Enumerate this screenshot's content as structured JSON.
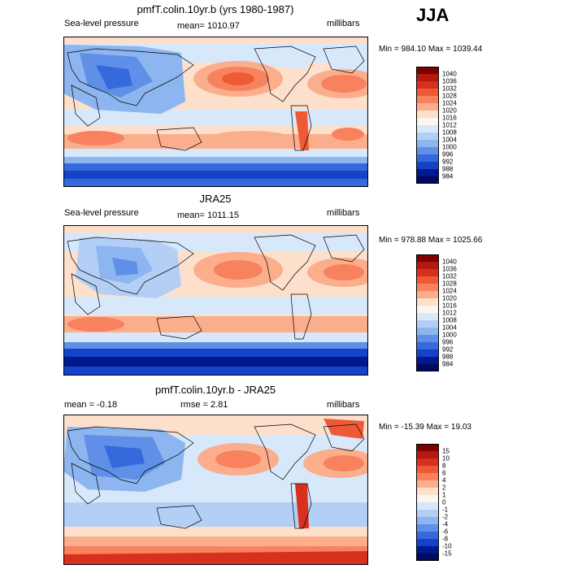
{
  "season": "JJA",
  "panels": [
    {
      "title": "pmfT.colin.10yr.b (yrs 1980-1987)",
      "left_label": "Sea-level pressure",
      "mid_label": "mean= 1010.97",
      "units": "millibars",
      "minmax": "Min = 984.10 Max = 1039.44",
      "colorbar": [
        "1040",
        "1036",
        "1032",
        "1028",
        "1024",
        "1020",
        "1016",
        "1012",
        "1008",
        "1004",
        "1000",
        "996",
        "992",
        "988",
        "984"
      ]
    },
    {
      "title": "JRA25",
      "left_label": "Sea-level pressure",
      "mid_label": "mean= 1011.15",
      "units": "millibars",
      "minmax": "Min = 978.88 Max = 1025.66",
      "colorbar": [
        "1040",
        "1036",
        "1032",
        "1028",
        "1024",
        "1020",
        "1016",
        "1012",
        "1008",
        "1004",
        "1000",
        "996",
        "992",
        "988",
        "984"
      ]
    },
    {
      "title": "pmfT.colin.10yr.b - JRA25",
      "left_label": "mean =   -0.18",
      "mid_label": "rmse =    2.81",
      "units": "millibars",
      "minmax": "Min = -15.39 Max =  19.03",
      "colorbar": [
        "15",
        "10",
        "8",
        "6",
        "4",
        "2",
        "1",
        "0",
        "-1",
        "-2",
        "-4",
        "-6",
        "-8",
        "-10",
        "-15"
      ]
    }
  ],
  "colors": {
    "abs_scale": [
      "#7f0000",
      "#b5180c",
      "#d7301f",
      "#ee5a36",
      "#f7825d",
      "#fbae8c",
      "#fde0cc",
      "#fff5ee",
      "#d8e8fb",
      "#b4cff5",
      "#8db5ef",
      "#5f8fe6",
      "#3569dc",
      "#1442c8",
      "#001890",
      "#000a5e"
    ],
    "diff_scale": [
      "#7f0000",
      "#b5180c",
      "#d7301f",
      "#ee5a36",
      "#f7825d",
      "#fbae8c",
      "#fde0cc",
      "#fff5ee",
      "#d8e8fb",
      "#b4cff5",
      "#8db5ef",
      "#5f8fe6",
      "#3569dc",
      "#1442c8",
      "#001890",
      "#000a5e"
    ]
  }
}
